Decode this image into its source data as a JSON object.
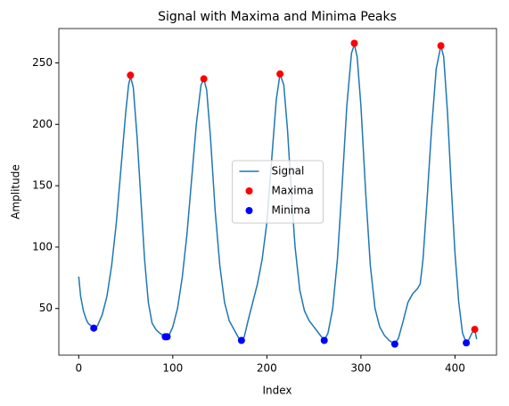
{
  "chart_data": {
    "type": "line",
    "title": "Signal with Maxima and Minima Peaks",
    "xlabel": "Index",
    "ylabel": "Amplitude",
    "xlim": [
      -21.15,
      444.15
    ],
    "xticks": [
      0,
      100,
      200,
      300,
      400
    ],
    "ylim": [
      12,
      278
    ],
    "yticks": [
      50,
      100,
      150,
      200,
      250
    ],
    "legend": "center",
    "series": [
      {
        "name": "Signal",
        "type": "line",
        "color": "#1f77b4",
        "x": [
          0,
          2,
          5,
          8,
          10,
          13,
          16,
          20,
          25,
          30,
          35,
          40,
          45,
          50,
          53,
          55,
          58,
          62,
          66,
          70,
          74,
          78,
          82,
          86,
          90,
          93,
          96,
          100,
          105,
          110,
          115,
          120,
          125,
          130,
          133,
          136,
          140,
          145,
          150,
          155,
          160,
          165,
          170,
          173,
          176,
          180,
          185,
          190,
          195,
          200,
          205,
          210,
          214,
          218,
          222,
          226,
          230,
          235,
          240,
          245,
          250,
          255,
          261,
          265,
          270,
          275,
          280,
          285,
          290,
          293,
          296,
          300,
          305,
          310,
          315,
          320,
          325,
          330,
          336,
          340,
          345,
          350,
          355,
          360,
          363,
          366,
          370,
          375,
          380,
          385,
          388,
          392,
          396,
          400,
          404,
          408,
          412,
          415,
          418,
          421,
          423
        ],
        "values": [
          76,
          60,
          48,
          41,
          38,
          36,
          34,
          36,
          45,
          60,
          85,
          120,
          165,
          210,
          232,
          239,
          230,
          190,
          140,
          90,
          55,
          38,
          33,
          30,
          28,
          27,
          28,
          35,
          50,
          75,
          110,
          155,
          200,
          232,
          237,
          228,
          190,
          130,
          85,
          55,
          40,
          33,
          26,
          24,
          27,
          40,
          55,
          70,
          90,
          120,
          170,
          220,
          241,
          232,
          195,
          145,
          100,
          65,
          48,
          40,
          35,
          30,
          24,
          30,
          50,
          90,
          150,
          215,
          258,
          265,
          255,
          215,
          145,
          85,
          50,
          35,
          28,
          24,
          21,
          26,
          40,
          55,
          62,
          66,
          70,
          90,
          135,
          195,
          245,
          264,
          255,
          210,
          150,
          95,
          55,
          30,
          22,
          25,
          30,
          33,
          25
        ]
      },
      {
        "name": "Maxima",
        "type": "scatter",
        "color": "#ff0000",
        "x": [
          55,
          133,
          214,
          293,
          385,
          421
        ],
        "values": [
          240,
          237,
          241,
          266,
          264,
          33
        ]
      },
      {
        "name": "Minima",
        "type": "scatter",
        "color": "#0000ff",
        "x": [
          16,
          92,
          94,
          173,
          261,
          336,
          412
        ],
        "values": [
          34,
          27,
          27,
          24,
          24,
          21,
          22
        ]
      }
    ]
  }
}
